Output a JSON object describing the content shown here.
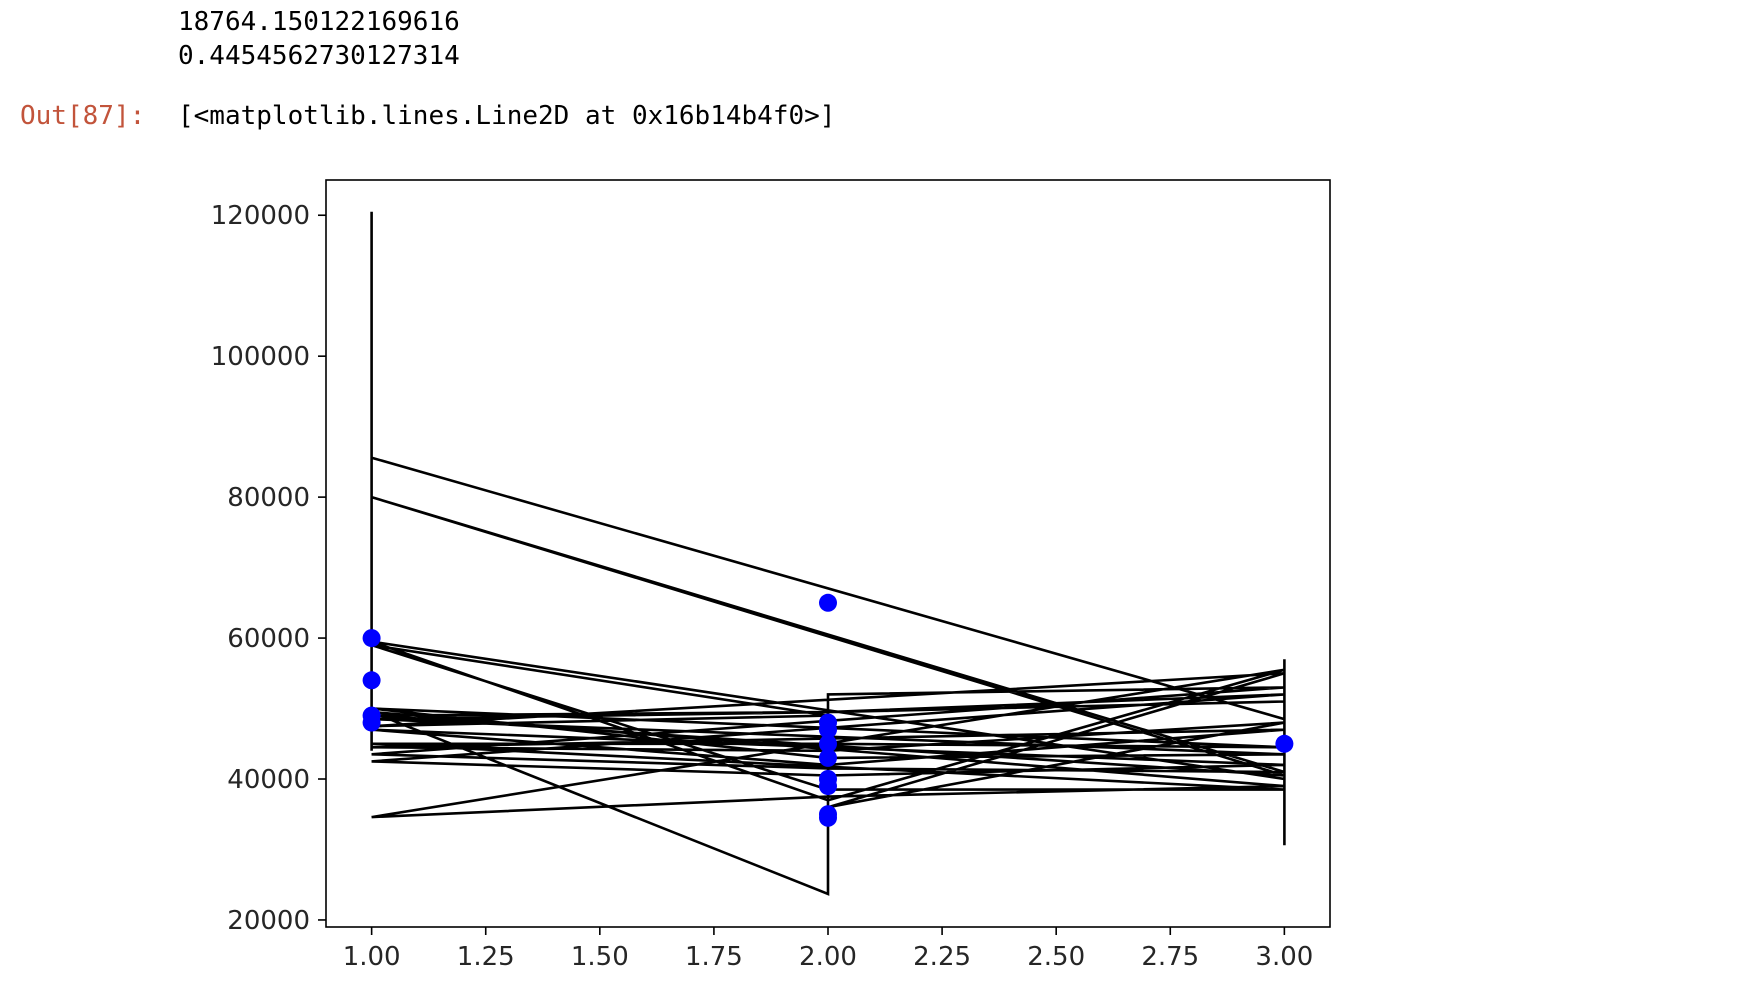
{
  "cell": {
    "stdout_lines": [
      "18764.150122169616",
      "0.4454562730127314"
    ],
    "out_prompt": "Out[87]:",
    "out_prompt_color": "#c2543b",
    "out_repr": "[<matplotlib.lines.Line2D at 0x16b14b4f0>]"
  },
  "chart_data": {
    "type": "line",
    "xlim": [
      0.9,
      3.1
    ],
    "ylim": [
      19000,
      125000
    ],
    "x_ticks": [
      "1.00",
      "1.25",
      "1.50",
      "1.75",
      "2.00",
      "2.25",
      "2.50",
      "2.75",
      "3.00"
    ],
    "x_tick_values": [
      1.0,
      1.25,
      1.5,
      1.75,
      2.0,
      2.25,
      2.5,
      2.75,
      3.0
    ],
    "y_ticks": [
      "20000",
      "40000",
      "60000",
      "80000",
      "100000",
      "120000"
    ],
    "y_tick_values": [
      20000,
      40000,
      60000,
      80000,
      100000,
      120000
    ],
    "grid": false,
    "series": [
      {
        "type": "scatter",
        "color": "#0000ff",
        "points": [
          [
            1,
            60000
          ],
          [
            1,
            54000
          ],
          [
            1,
            49000
          ],
          [
            1,
            48000
          ],
          [
            2,
            65000
          ],
          [
            2,
            48000
          ],
          [
            2,
            47000
          ],
          [
            2,
            45000
          ],
          [
            2,
            43000
          ],
          [
            2,
            40000
          ],
          [
            2,
            39000
          ],
          [
            2,
            35000
          ],
          [
            2,
            34500
          ],
          [
            3,
            45000
          ]
        ]
      },
      {
        "type": "line",
        "color": "#000000",
        "points": [
          [
            1,
            120500
          ],
          [
            1,
            44000
          ],
          [
            1,
            85600
          ],
          [
            3,
            48500
          ],
          [
            3,
            57000
          ],
          [
            3,
            30600
          ],
          [
            3,
            40000
          ],
          [
            1,
            59500
          ],
          [
            2,
            37000
          ],
          [
            3,
            55500
          ],
          [
            1,
            34600
          ],
          [
            2,
            37500
          ],
          [
            3,
            39000
          ],
          [
            1,
            49500
          ],
          [
            2,
            23700
          ],
          [
            2,
            52000
          ],
          [
            3,
            53000
          ],
          [
            1,
            43500
          ],
          [
            2,
            41500
          ],
          [
            3,
            41000
          ],
          [
            1,
            80000
          ],
          [
            3,
            40500
          ],
          [
            1,
            49000
          ],
          [
            2,
            49500
          ],
          [
            3,
            52000
          ],
          [
            1,
            42500
          ],
          [
            2,
            40500
          ],
          [
            3,
            42000
          ],
          [
            1,
            47000
          ],
          [
            2,
            42000
          ],
          [
            3,
            47000
          ],
          [
            1,
            44500
          ],
          [
            2,
            44000
          ],
          [
            3,
            48000
          ],
          [
            2,
            36000
          ],
          [
            3,
            55000
          ],
          [
            1,
            47500
          ],
          [
            2,
            49000
          ],
          [
            1,
            59000
          ],
          [
            2,
            38500
          ],
          [
            3,
            38500
          ],
          [
            1,
            45000
          ],
          [
            2,
            45000
          ],
          [
            3,
            44500
          ],
          [
            1,
            50000
          ],
          [
            2,
            43000
          ],
          [
            3,
            43500
          ],
          [
            1,
            48500
          ],
          [
            2,
            49500
          ],
          [
            3,
            51000
          ]
        ]
      }
    ]
  }
}
